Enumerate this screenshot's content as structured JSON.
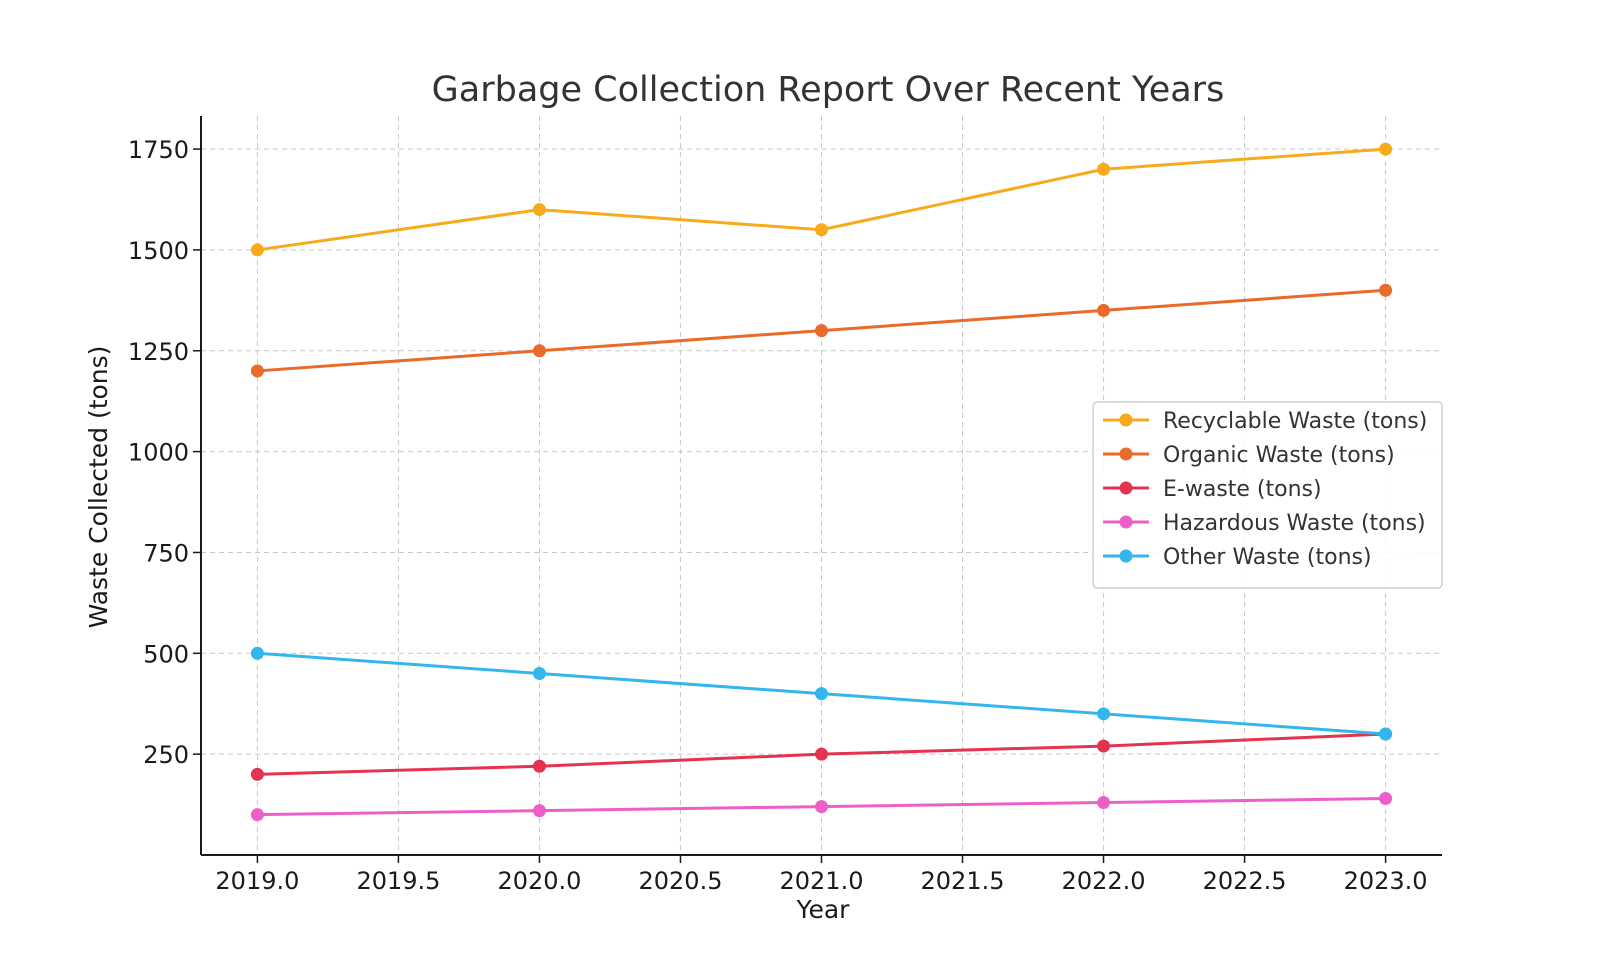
{
  "chart_data": {
    "type": "line",
    "title": "Garbage Collection Report Over Recent Years",
    "xlabel": "Year",
    "ylabel": "Waste Collected (tons)",
    "x": [
      2019,
      2020,
      2021,
      2022,
      2023
    ],
    "xlim": [
      2018.8,
      2023.2
    ],
    "ylim": [
      0,
      1832
    ],
    "x_ticks": [
      2019.0,
      2019.5,
      2020.0,
      2020.5,
      2021.0,
      2021.5,
      2022.0,
      2022.5,
      2023.0
    ],
    "x_tick_labels": [
      "2019.0",
      "2019.5",
      "2020.0",
      "2020.5",
      "2021.0",
      "2021.5",
      "2022.0",
      "2022.5",
      "2023.0"
    ],
    "y_ticks": [
      250,
      500,
      750,
      1000,
      1250,
      1500,
      1750
    ],
    "y_tick_labels": [
      "250",
      "500",
      "750",
      "1000",
      "1250",
      "1500",
      "1750"
    ],
    "grid": true,
    "legend_position": "right",
    "series": [
      {
        "name": "Recyclable Waste (tons)",
        "color": "#f5ab1b",
        "values": [
          1500,
          1600,
          1550,
          1700,
          1750
        ]
      },
      {
        "name": "Organic Waste (tons)",
        "color": "#ea6a2a",
        "values": [
          1200,
          1250,
          1300,
          1350,
          1400
        ]
      },
      {
        "name": "E-waste (tons)",
        "color": "#e4334f",
        "values": [
          200,
          220,
          250,
          270,
          300
        ]
      },
      {
        "name": "Hazardous Waste (tons)",
        "color": "#ec5fc9",
        "values": [
          100,
          110,
          120,
          130,
          140
        ]
      },
      {
        "name": "Other Waste (tons)",
        "color": "#33b6ec",
        "values": [
          500,
          450,
          400,
          350,
          300
        ]
      }
    ]
  }
}
